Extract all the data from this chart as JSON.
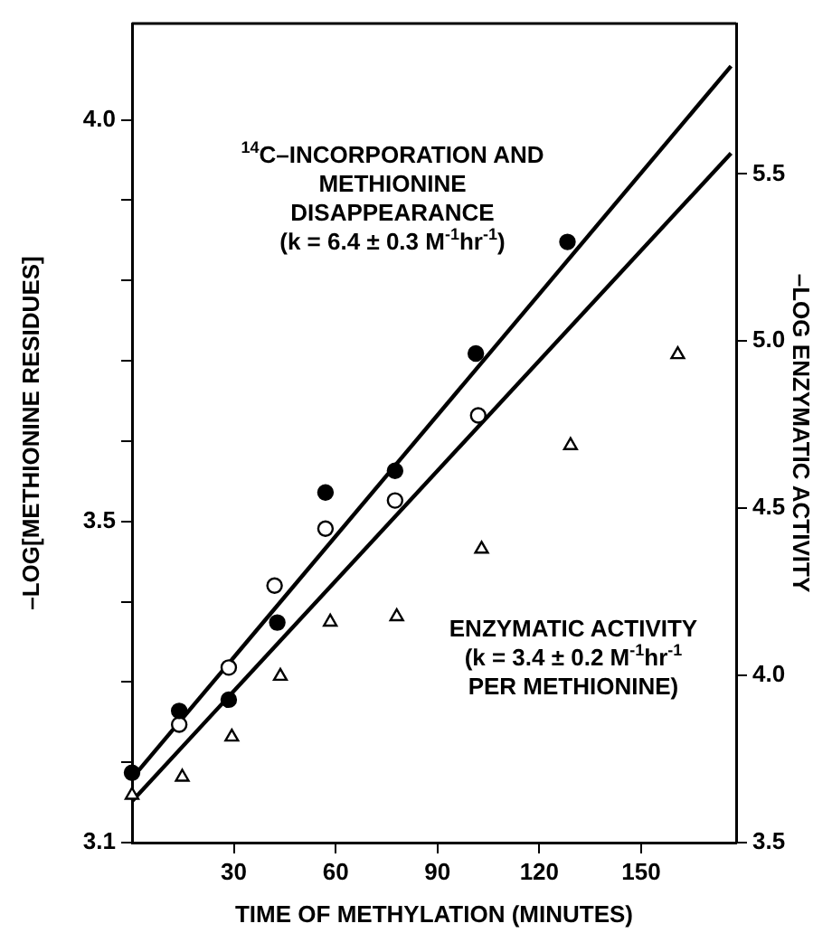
{
  "chart_data": {
    "type": "scatter",
    "xlabel": "TIME OF METHYLATION (MINUTES)",
    "ylabel": "–LOG[METHIONINE RESIDUES]",
    "y2label": "–LOG ENZYMATIC ACTIVITY",
    "xlim": [
      0,
      178
    ],
    "xticks": [
      30,
      60,
      90,
      120,
      150
    ],
    "ylim": [
      3.1,
      4.12
    ],
    "yticks": [
      {
        "value": 3.1,
        "label": "3.1"
      },
      {
        "value": 3.2,
        "label": null
      },
      {
        "value": 3.3,
        "label": null
      },
      {
        "value": 3.4,
        "label": null
      },
      {
        "value": 3.5,
        "label": "3.5"
      },
      {
        "value": 3.6,
        "label": null
      },
      {
        "value": 3.7,
        "label": null
      },
      {
        "value": 3.8,
        "label": null
      },
      {
        "value": 3.9,
        "label": null
      },
      {
        "value": 4.0,
        "label": "4.0"
      }
    ],
    "y2lim": [
      3.5,
      5.95
    ],
    "y2ticks": [
      {
        "value": 3.5,
        "label": "3.5"
      },
      {
        "value": 4.0,
        "label": "4.0"
      },
      {
        "value": 4.5,
        "label": "4.5"
      },
      {
        "value": 5.0,
        "label": "5.0"
      },
      {
        "value": 5.5,
        "label": "5.5"
      }
    ],
    "grid": false,
    "legend": false,
    "series": [
      {
        "marker": "circle",
        "color": "#000000",
        "x": [
          0,
          13.9,
          28.5,
          42.8,
          57,
          77.5,
          101.3,
          128.3
        ],
        "values": [
          3.187,
          3.264,
          3.278,
          3.374,
          3.536,
          3.563,
          3.709,
          3.848
        ]
      },
      {
        "marker": "circle",
        "color": "#ffffff",
        "x": [
          13.9,
          28.5,
          42,
          57,
          77.5,
          102
        ],
        "values": [
          3.247,
          3.318,
          3.42,
          3.491,
          3.526,
          3.632
        ]
      },
      {
        "marker": "triangle",
        "color": "#ffffff",
        "axis": "y2",
        "x": [
          0,
          14.8,
          29.4,
          43.7,
          58.4,
          78,
          103,
          129.2,
          160.8
        ],
        "values": [
          3.642,
          3.696,
          3.816,
          3.998,
          4.16,
          4.176,
          4.378,
          4.688,
          4.96
        ]
      },
      {
        "type": "line",
        "marker": "none",
        "color": "#000000",
        "x": [
          0,
          176.5
        ],
        "values": [
          3.18,
          4.067
        ]
      },
      {
        "type": "line",
        "marker": "none",
        "color": "#000000",
        "axis": "y2",
        "x": [
          0,
          176.5
        ],
        "values": [
          3.624,
          5.562
        ]
      }
    ],
    "annotations": [
      "$^{14}$C–INCORPORATION AND\nMETHIONINE\nDISAPPEARANCE\n(k = 6.4 ± 0.3 M$^{-1}$hr$^{-1}$)",
      "ENZYMATIC ACTIVITY\n(k = 3.4 ± 0.2 M$^{-1}$hr$^{-1}$\nPER METHIONINE)"
    ]
  }
}
